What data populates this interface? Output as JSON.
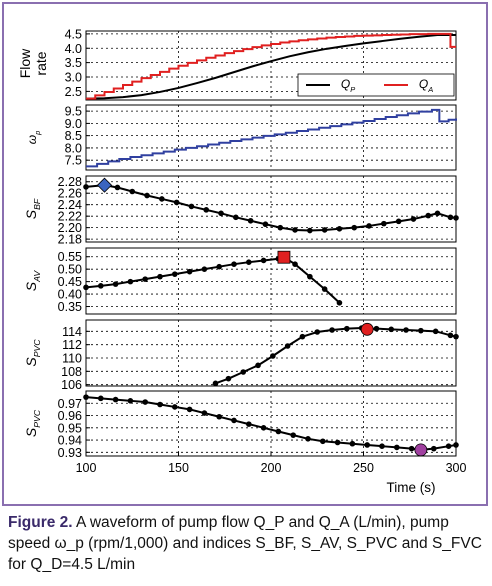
{
  "figure": {
    "border_color": "#8a6fb0",
    "caption": {
      "label": "Figure 2.",
      "text": " A waveform of pump flow Q_P and Q_A (L/min), pump speed ω_p (rpm/1,000) and indices S_BF, S_AV, S_PVC and S_FVC for Q_D=4.5 L/min"
    }
  },
  "chart_data": [
    {
      "id": "flow",
      "type": "line",
      "ylabel": "Flow rate",
      "yticks": [
        "4.5",
        "4.0",
        "3.5",
        "3.0",
        "2.5"
      ],
      "ylim": [
        2.2,
        4.6
      ],
      "xlim": [
        100,
        300
      ],
      "grid": true,
      "legend": {
        "placement": "lower-right",
        "entries": [
          "Q_P",
          "Q_A"
        ]
      },
      "series": [
        {
          "name": "Q_P",
          "color": "#000000",
          "x": [
            100,
            110,
            120,
            130,
            140,
            150,
            160,
            170,
            180,
            190,
            200,
            210,
            220,
            230,
            240,
            250,
            260,
            270,
            280,
            290,
            300
          ],
          "y": [
            2.25,
            2.26,
            2.3,
            2.37,
            2.48,
            2.62,
            2.79,
            2.97,
            3.17,
            3.37,
            3.55,
            3.72,
            3.86,
            3.98,
            4.08,
            4.17,
            4.25,
            4.33,
            4.4,
            4.46,
            4.46
          ]
        },
        {
          "name": "Q_A",
          "color": "#e02020",
          "step": true,
          "x": [
            100,
            105,
            110,
            115,
            120,
            125,
            130,
            135,
            140,
            145,
            150,
            155,
            160,
            165,
            170,
            175,
            180,
            185,
            190,
            195,
            200,
            205,
            210,
            215,
            220,
            225,
            230,
            235,
            240,
            245,
            250,
            255,
            260,
            265,
            270,
            275,
            280,
            285,
            290,
            295,
            297,
            300
          ],
          "y": [
            2.25,
            2.36,
            2.48,
            2.6,
            2.72,
            2.84,
            2.96,
            3.07,
            3.18,
            3.29,
            3.39,
            3.49,
            3.58,
            3.67,
            3.75,
            3.83,
            3.9,
            3.97,
            4.04,
            4.1,
            4.15,
            4.2,
            4.24,
            4.28,
            4.31,
            4.34,
            4.37,
            4.39,
            4.41,
            4.43,
            4.44,
            4.45,
            4.46,
            4.47,
            4.48,
            4.49,
            4.49,
            4.5,
            4.5,
            4.5,
            4.05,
            4.05
          ]
        }
      ]
    },
    {
      "id": "omega",
      "type": "line",
      "ylabel": "ω_p",
      "yticks": [
        "9.5",
        "9.0",
        "8.5",
        "8.0",
        "7.5"
      ],
      "ylim": [
        7.1,
        9.75
      ],
      "xlim": [
        100,
        300
      ],
      "grid": true,
      "series": [
        {
          "name": "",
          "color": "#3040a0",
          "step": true,
          "x": [
            100,
            106,
            112,
            118,
            124,
            130,
            136,
            142,
            148,
            154,
            160,
            166,
            172,
            178,
            184,
            190,
            196,
            202,
            208,
            214,
            220,
            226,
            232,
            238,
            244,
            250,
            256,
            262,
            268,
            274,
            280,
            287,
            291,
            296,
            300
          ],
          "y": [
            7.25,
            7.35,
            7.45,
            7.55,
            7.63,
            7.7,
            7.78,
            7.85,
            7.93,
            8.0,
            8.07,
            8.14,
            8.21,
            8.28,
            8.35,
            8.42,
            8.49,
            8.55,
            8.62,
            8.69,
            8.75,
            8.82,
            8.89,
            8.96,
            9.03,
            9.1,
            9.18,
            9.26,
            9.33,
            9.41,
            9.48,
            9.55,
            9.08,
            9.15,
            9.2
          ]
        }
      ]
    },
    {
      "id": "sbf",
      "type": "line",
      "ylabel": "S_BF",
      "yticks": [
        "2.28",
        "2.26",
        "2.24",
        "2.22",
        "2.20",
        "2.18"
      ],
      "ylim": [
        2.175,
        2.29
      ],
      "xlim": [
        100,
        300
      ],
      "grid": true,
      "marker_point": {
        "x": 110,
        "y": 2.274,
        "shape": "diamond",
        "color": "#3a64c0"
      },
      "series": [
        {
          "name": "",
          "color": "#000000",
          "markers": true,
          "x": [
            100,
            110,
            117,
            125,
            133,
            141,
            149,
            157,
            165,
            173,
            181,
            189,
            197,
            205,
            213,
            221,
            229,
            237,
            245,
            253,
            261,
            269,
            277,
            285,
            290,
            297,
            300
          ],
          "y": [
            2.271,
            2.274,
            2.27,
            2.263,
            2.256,
            2.25,
            2.244,
            2.237,
            2.231,
            2.225,
            2.218,
            2.212,
            2.206,
            2.2,
            2.196,
            2.195,
            2.196,
            2.198,
            2.2,
            2.203,
            2.207,
            2.211,
            2.215,
            2.221,
            2.225,
            2.218,
            2.217
          ]
        }
      ]
    },
    {
      "id": "sav",
      "type": "line",
      "ylabel": "S_AV",
      "yticks": [
        "0.55",
        "0.50",
        "0.45",
        "0.40",
        "0.35"
      ],
      "ylim": [
        0.32,
        0.585
      ],
      "xlim": [
        100,
        300
      ],
      "grid": true,
      "marker_point": {
        "x": 207,
        "y": 0.548,
        "shape": "square",
        "color": "#e02020"
      },
      "series": [
        {
          "name": "",
          "color": "#000000",
          "markers": true,
          "x": [
            100,
            108,
            116,
            124,
            132,
            140,
            148,
            156,
            164,
            172,
            180,
            188,
            196,
            204,
            207,
            213,
            221,
            229,
            237
          ],
          "y": [
            0.427,
            0.433,
            0.44,
            0.45,
            0.46,
            0.47,
            0.48,
            0.49,
            0.5,
            0.51,
            0.52,
            0.528,
            0.535,
            0.542,
            0.548,
            0.52,
            0.47,
            0.42,
            0.365
          ]
        }
      ]
    },
    {
      "id": "spvc",
      "type": "line",
      "ylabel": "S_PVC",
      "yticks": [
        "114",
        "112",
        "110",
        "108",
        "106"
      ],
      "ylim": [
        105.8,
        115.7
      ],
      "xlim": [
        100,
        300
      ],
      "grid": true,
      "marker_point": {
        "x": 252,
        "y": 114.3,
        "shape": "circle",
        "color": "#e02020"
      },
      "series": [
        {
          "name": "",
          "color": "#000000",
          "markers": true,
          "x": [
            170,
            177,
            185,
            193,
            201,
            209,
            217,
            225,
            233,
            241,
            249,
            252,
            257,
            265,
            273,
            281,
            289,
            297,
            300
          ],
          "y": [
            106.2,
            106.9,
            107.9,
            108.9,
            110.3,
            111.8,
            113.2,
            113.9,
            114.2,
            114.4,
            114.5,
            114.3,
            114.4,
            114.3,
            114.2,
            114.1,
            114.0,
            113.4,
            113.2
          ]
        }
      ]
    },
    {
      "id": "sfvc",
      "type": "line",
      "ylabel": "S_PVC",
      "yticks": [
        "0.97",
        "0.96",
        "0.95",
        "0.94",
        "0.93"
      ],
      "ylim": [
        0.927,
        0.98
      ],
      "xlim": [
        100,
        300
      ],
      "grid": true,
      "xticks": [
        "100",
        "150",
        "200",
        "250",
        "300"
      ],
      "xlabel": "Time (s)",
      "marker_point": {
        "x": 281,
        "y": 0.932,
        "shape": "circle",
        "color": "#a040a0"
      },
      "series": [
        {
          "name": "",
          "color": "#000000",
          "markers": true,
          "x": [
            100,
            108,
            116,
            124,
            132,
            140,
            148,
            156,
            164,
            172,
            180,
            188,
            196,
            204,
            212,
            220,
            228,
            236,
            244,
            252,
            260,
            268,
            276,
            281,
            288,
            296,
            300
          ],
          "y": [
            0.975,
            0.974,
            0.973,
            0.972,
            0.971,
            0.969,
            0.967,
            0.965,
            0.962,
            0.959,
            0.956,
            0.953,
            0.95,
            0.947,
            0.944,
            0.941,
            0.939,
            0.938,
            0.937,
            0.936,
            0.935,
            0.934,
            0.933,
            0.932,
            0.933,
            0.935,
            0.936
          ]
        }
      ]
    }
  ]
}
